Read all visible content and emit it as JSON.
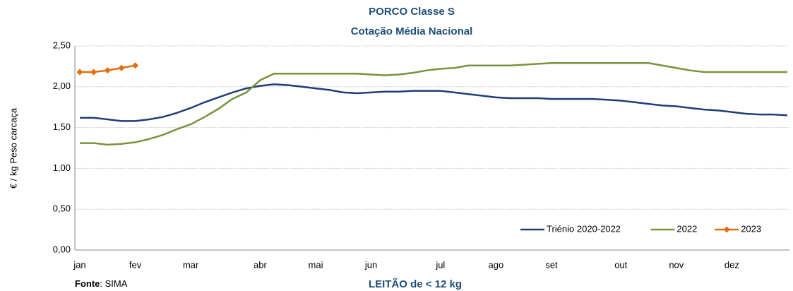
{
  "chart_data": {
    "type": "line",
    "title": "PORCO Classe S",
    "subtitle": "Cotação Média Nacional",
    "ylabel": "€ / kg Peso carcaça",
    "xlabel": "LEITÃO de < 12 kg",
    "source_label": "Fonte",
    "source": ": SIMA",
    "categories": [
      "jan",
      null,
      null,
      null,
      "fev",
      null,
      null,
      null,
      "mar",
      null,
      null,
      null,
      null,
      "abr",
      null,
      null,
      null,
      "mai",
      null,
      null,
      null,
      "jun",
      null,
      null,
      null,
      null,
      "jul",
      null,
      null,
      null,
      "ago",
      null,
      null,
      null,
      "set",
      null,
      null,
      null,
      null,
      "out",
      null,
      null,
      null,
      "nov",
      null,
      null,
      null,
      "dez",
      null,
      null,
      null,
      null
    ],
    "series": [
      {
        "name": "Triénio 2020-2022",
        "color": "#1f3e78",
        "marker": false,
        "values": [
          1.62,
          1.62,
          1.6,
          1.58,
          1.58,
          1.6,
          1.63,
          1.68,
          1.74,
          1.81,
          1.87,
          1.93,
          1.98,
          2.01,
          2.03,
          2.02,
          2.0,
          1.98,
          1.96,
          1.93,
          1.92,
          1.93,
          1.94,
          1.94,
          1.95,
          1.95,
          1.95,
          1.93,
          1.91,
          1.89,
          1.87,
          1.86,
          1.86,
          1.86,
          1.85,
          1.85,
          1.85,
          1.85,
          1.84,
          1.83,
          1.81,
          1.79,
          1.77,
          1.76,
          1.74,
          1.72,
          1.71,
          1.69,
          1.67,
          1.66,
          1.66,
          1.65
        ]
      },
      {
        "name": "2022",
        "color": "#77933c",
        "marker": false,
        "values": [
          1.31,
          1.31,
          1.29,
          1.3,
          1.32,
          1.36,
          1.41,
          1.48,
          1.54,
          1.63,
          1.73,
          1.85,
          1.93,
          2.08,
          2.16,
          2.16,
          2.16,
          2.16,
          2.16,
          2.16,
          2.16,
          2.15,
          2.14,
          2.15,
          2.17,
          2.2,
          2.22,
          2.23,
          2.26,
          2.26,
          2.26,
          2.26,
          2.27,
          2.28,
          2.29,
          2.29,
          2.29,
          2.29,
          2.29,
          2.29,
          2.29,
          2.29,
          2.26,
          2.23,
          2.2,
          2.18,
          2.18,
          2.18,
          2.18,
          2.18,
          2.18,
          2.18
        ]
      },
      {
        "name": "2023",
        "color": "#e46c0a",
        "marker": true,
        "values": [
          2.18,
          2.18,
          2.2,
          2.23,
          2.26,
          null,
          null,
          null,
          null,
          null,
          null,
          null,
          null,
          null,
          null,
          null,
          null,
          null,
          null,
          null,
          null,
          null,
          null,
          null,
          null,
          null,
          null,
          null,
          null,
          null,
          null,
          null,
          null,
          null,
          null,
          null,
          null,
          null,
          null,
          null,
          null,
          null,
          null,
          null,
          null,
          null,
          null,
          null,
          null,
          null,
          null,
          null
        ]
      }
    ],
    "ylim": [
      0,
      2.5
    ],
    "yticks": [
      {
        "value": 0,
        "label": "0,00"
      },
      {
        "value": 0.5,
        "label": "0,50"
      },
      {
        "value": 1,
        "label": "1,00"
      },
      {
        "value": 1.5,
        "label": "1,50"
      },
      {
        "value": 2,
        "label": "2,00"
      },
      {
        "value": 2.5,
        "label": "2,50"
      }
    ],
    "grid": true,
    "legend": "lower right"
  }
}
